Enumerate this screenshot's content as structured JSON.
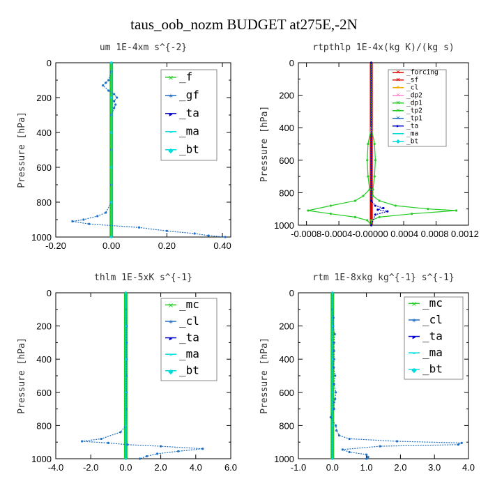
{
  "figure_title": "taus_oob_nozm  BUDGET at275E,-2N",
  "colors": {
    "green": "#22cc22",
    "blue": "#1f6fc4",
    "navy": "#0000cc",
    "cyan": "#00dddd",
    "red": "#dd0000",
    "orange": "#ffaa00",
    "pink": "#ff88cc",
    "dark_green": "#117711"
  },
  "chart_data": [
    {
      "type": "line",
      "panel": "top-left",
      "title": "um  1E-4xm s^{-2}",
      "ylabel": "Pressure [hPa]",
      "xlim": [
        -0.2,
        0.43
      ],
      "ylim": [
        1000,
        0
      ],
      "x_ticks": [
        "-0.20",
        "0.00",
        "0.20",
        "0.40"
      ],
      "x_tick_values": [
        -0.2,
        0.0,
        0.2,
        0.4
      ],
      "y_ticks": [
        "0",
        "200",
        "400",
        "600",
        "800",
        "1000"
      ],
      "y_tick_values": [
        0,
        200,
        400,
        600,
        800,
        1000
      ],
      "legend_placement": "top-right",
      "legend": [
        "_f",
        "_gf",
        "_ta",
        "_ma",
        "_bt"
      ],
      "series": [
        {
          "name": "_f",
          "color": "green",
          "x": [
            0,
            0,
            0,
            0,
            0,
            0,
            0,
            0,
            0,
            0,
            0,
            0
          ],
          "y": [
            0,
            100,
            200,
            300,
            400,
            500,
            600,
            700,
            800,
            900,
            950,
            1000
          ]
        },
        {
          "name": "_gf",
          "color": "blue",
          "x": [
            0,
            0,
            -0.01,
            -0.02,
            -0.03,
            -0.01,
            0.01,
            0.02,
            0.01,
            0.015,
            0.01,
            0,
            0,
            0,
            0,
            0,
            0,
            -0.02,
            -0.05,
            -0.1,
            -0.14,
            -0.08,
            0.1,
            0.2,
            0.3,
            0.35,
            0.41
          ],
          "y": [
            0,
            50,
            100,
            115,
            130,
            160,
            180,
            200,
            220,
            240,
            260,
            300,
            400,
            500,
            600,
            700,
            800,
            860,
            880,
            900,
            910,
            925,
            945,
            965,
            980,
            992,
            1000
          ]
        },
        {
          "name": "_ta",
          "color": "navy",
          "x": [
            0,
            0,
            0,
            0,
            0,
            0
          ],
          "y": [
            0,
            200,
            400,
            600,
            800,
            1000
          ]
        },
        {
          "name": "_ma",
          "color": "cyan",
          "x": [
            0,
            0,
            0,
            0,
            0,
            0
          ],
          "y": [
            0,
            200,
            400,
            600,
            800,
            1000
          ]
        },
        {
          "name": "_bt",
          "color": "cyan",
          "x": [
            0,
            0,
            0,
            0,
            0,
            0
          ],
          "y": [
            0,
            200,
            400,
            600,
            800,
            1000
          ]
        }
      ]
    },
    {
      "type": "line",
      "panel": "top-right",
      "title": "rtpthlp  1E-4x(kg K)/(kg s)",
      "ylabel": "Pressure [hPa]",
      "xlim": [
        -0.0009,
        0.0012
      ],
      "ylim": [
        1000,
        0
      ],
      "x_ticks": [
        "-0.0008",
        "-0.0004",
        "0.0000",
        "0.0004",
        "0.0008",
        "0.0012"
      ],
      "x_tick_values": [
        -0.0008,
        -0.0004,
        0.0,
        0.0004,
        0.0008,
        0.0012
      ],
      "x_tick_display": "-0.0008-0.0004-0.00000  0.0004  0.0008  0.0012",
      "y_ticks": [
        "0",
        "200",
        "400",
        "600",
        "800",
        "1000"
      ],
      "y_tick_values": [
        0,
        200,
        400,
        600,
        800,
        1000
      ],
      "legend_placement": "top-right",
      "legend": [
        "_forcing",
        "_sf",
        "_cl",
        "_dp2",
        "_dp1",
        "_tp2",
        "_tp1",
        "_ta",
        "_ma",
        "_bt"
      ],
      "series": [
        {
          "name": "_forcing",
          "color": "red",
          "x": [
            0,
            0,
            0,
            0,
            0,
            0
          ],
          "y": [
            0,
            200,
            400,
            600,
            800,
            1000
          ]
        },
        {
          "name": "_sf",
          "color": "red",
          "x": [
            0,
            0,
            0,
            0,
            0,
            0
          ],
          "y": [
            0,
            200,
            400,
            600,
            800,
            1000
          ]
        },
        {
          "name": "_dp1",
          "color": "green",
          "x": [
            0,
            0,
            4e-05,
            5e-05,
            4e-05,
            2e-05,
            2e-05,
            0.0001,
            0.0003,
            0.0007,
            0.00105,
            0.0005,
            0.0001,
            0,
            0
          ],
          "y": [
            0,
            400,
            500,
            600,
            700,
            780,
            820,
            850,
            880,
            900,
            910,
            930,
            950,
            970,
            1000
          ]
        },
        {
          "name": "_tp2",
          "color": "green",
          "x": [
            0,
            0,
            -4e-05,
            -5e-05,
            -4e-05,
            -2e-05,
            -0.0001,
            -0.0002,
            -0.0005,
            -0.00078,
            -0.0005,
            -0.0002,
            -5e-05,
            0
          ],
          "y": [
            0,
            400,
            500,
            600,
            700,
            780,
            820,
            850,
            880,
            910,
            930,
            950,
            970,
            1000
          ]
        },
        {
          "name": "_ta",
          "color": "navy",
          "x": [
            0,
            0,
            5e-05,
            0.00015,
            8e-05,
            0.0002,
            5e-05,
            0
          ],
          "y": [
            0,
            850,
            880,
            895,
            905,
            915,
            935,
            1000
          ]
        }
      ]
    },
    {
      "type": "line",
      "panel": "bottom-left",
      "title": "thlm  1E-5xK s^{-1}",
      "ylabel": "Pressure [hPa]",
      "xlim": [
        -4.0,
        6.0
      ],
      "ylim": [
        1000,
        0
      ],
      "x_ticks": [
        "-4.0",
        "-2.0",
        "0.0",
        "2.0",
        "4.0",
        "6.0"
      ],
      "x_tick_values": [
        -4,
        -2,
        0,
        2,
        4,
        6
      ],
      "y_ticks": [
        "0",
        "200",
        "400",
        "600",
        "800",
        "1000"
      ],
      "y_tick_values": [
        0,
        200,
        400,
        600,
        800,
        1000
      ],
      "legend_placement": "top-right",
      "legend": [
        "_mc",
        "_cl",
        "_ta",
        "_ma",
        "_bt"
      ],
      "series": [
        {
          "name": "_mc",
          "color": "green",
          "x": [
            0,
            0,
            0,
            0,
            0,
            0
          ],
          "y": [
            0,
            200,
            400,
            600,
            800,
            1000
          ]
        },
        {
          "name": "_cl",
          "color": "blue",
          "x": [
            0,
            0,
            0.05,
            0.05,
            0.05,
            0.04,
            0.04,
            0.03,
            0,
            -0.3,
            -1.4,
            -2.5,
            -1.0,
            0.1,
            2.0,
            4.4,
            3.0,
            1.8,
            1.2,
            0.8
          ],
          "y": [
            0,
            100,
            200,
            300,
            400,
            500,
            600,
            700,
            800,
            840,
            880,
            895,
            905,
            915,
            925,
            940,
            955,
            970,
            985,
            1000
          ]
        },
        {
          "name": "_ta",
          "color": "navy",
          "x": [
            0,
            0,
            0,
            0,
            0,
            0
          ],
          "y": [
            0,
            200,
            400,
            600,
            800,
            1000
          ]
        },
        {
          "name": "_bt",
          "color": "cyan",
          "x": [
            0,
            0,
            0,
            0,
            0,
            0
          ],
          "y": [
            0,
            200,
            400,
            600,
            800,
            1000
          ]
        }
      ]
    },
    {
      "type": "line",
      "panel": "bottom-right",
      "title": "rtm  1E-8xkg kg^{-1} s^{-1}",
      "ylabel": "Pressure [hPa]",
      "xlim": [
        -1.0,
        4.0
      ],
      "ylim": [
        1000,
        0
      ],
      "x_ticks": [
        "-1.0",
        "0.0",
        "1.0",
        "2.0",
        "3.0",
        "4.0"
      ],
      "x_tick_values": [
        -1,
        0,
        1,
        2,
        3,
        4
      ],
      "y_ticks": [
        "0",
        "200",
        "400",
        "600",
        "800",
        "1000"
      ],
      "y_tick_values": [
        0,
        200,
        400,
        600,
        800,
        1000
      ],
      "legend_placement": "top-right",
      "legend": [
        "_mc",
        "_cl",
        "_ta",
        "_ma",
        "_bt"
      ],
      "series": [
        {
          "name": "_mc",
          "color": "green",
          "x": [
            0,
            0,
            0,
            0,
            0,
            0
          ],
          "y": [
            0,
            200,
            400,
            600,
            800,
            1000
          ]
        },
        {
          "name": "_cl",
          "color": "blue",
          "x": [
            0,
            0,
            0.03,
            0.02,
            0.07,
            0.05,
            0.05,
            0.05,
            0.04,
            0.08,
            0.05,
            0.1,
            0.08,
            0.05,
            0.05,
            -0.05,
            0.1,
            0.12,
            0.2,
            0.5,
            1.9,
            3.8,
            3.7,
            1.4,
            0.3,
            0.5,
            1.0,
            1.05,
            1.0
          ],
          "y": [
            0,
            100,
            150,
            200,
            250,
            300,
            350,
            400,
            450,
            500,
            550,
            600,
            640,
            660,
            700,
            750,
            800,
            830,
            860,
            880,
            895,
            905,
            915,
            925,
            945,
            960,
            975,
            990,
            1000
          ]
        },
        {
          "name": "_ta",
          "color": "navy",
          "x": [
            0,
            0,
            0,
            0,
            0,
            0
          ],
          "y": [
            0,
            200,
            400,
            600,
            800,
            1000
          ]
        },
        {
          "name": "_bt",
          "color": "cyan",
          "x": [
            0,
            0,
            0,
            0,
            0,
            0
          ],
          "y": [
            0,
            200,
            400,
            600,
            800,
            1000
          ]
        }
      ]
    }
  ]
}
